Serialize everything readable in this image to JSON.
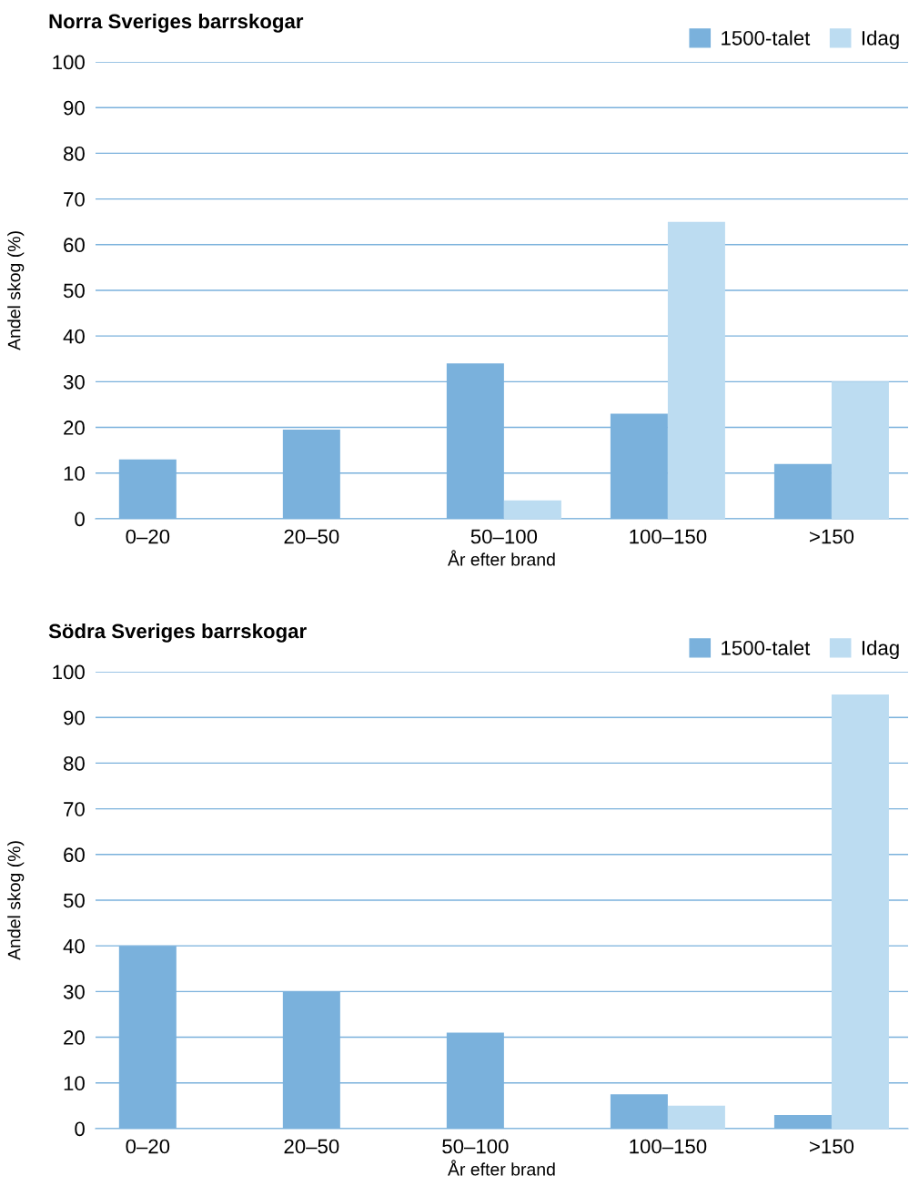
{
  "chart_data": [
    {
      "type": "bar",
      "title": "Norra Sveriges barrskogar",
      "xlabel": "År efter brand",
      "ylabel": "Andel skog (%)",
      "categories": [
        "0–20",
        "20–50",
        "50–100",
        "100–150",
        ">150"
      ],
      "series": [
        {
          "name": "1500-talet",
          "color": "#7ab1dc",
          "values": [
            13,
            19.5,
            34,
            23,
            12
          ]
        },
        {
          "name": "Idag",
          "color": "#bcdcf1",
          "values": [
            null,
            null,
            4,
            65,
            30
          ]
        }
      ],
      "ylim": [
        0,
        100
      ],
      "yticks": [
        0,
        10,
        20,
        30,
        40,
        50,
        60,
        70,
        80,
        90,
        100
      ],
      "grid": "y",
      "legend": "top right"
    },
    {
      "type": "bar",
      "title": "Södra Sveriges barrskogar",
      "xlabel": "År efter brand",
      "ylabel": "Andel skog (%)",
      "categories": [
        "0–20",
        "20–50",
        "50–100",
        "100–150",
        ">150"
      ],
      "series": [
        {
          "name": "1500-talet",
          "color": "#7ab1dc",
          "values": [
            40,
            30,
            21,
            7.5,
            3
          ]
        },
        {
          "name": "Idag",
          "color": "#bcdcf1",
          "values": [
            null,
            null,
            null,
            5,
            95
          ]
        }
      ],
      "ylim": [
        0,
        100
      ],
      "yticks": [
        0,
        10,
        20,
        30,
        40,
        50,
        60,
        70,
        80,
        90,
        100
      ],
      "grid": "y",
      "legend": "top right"
    }
  ]
}
